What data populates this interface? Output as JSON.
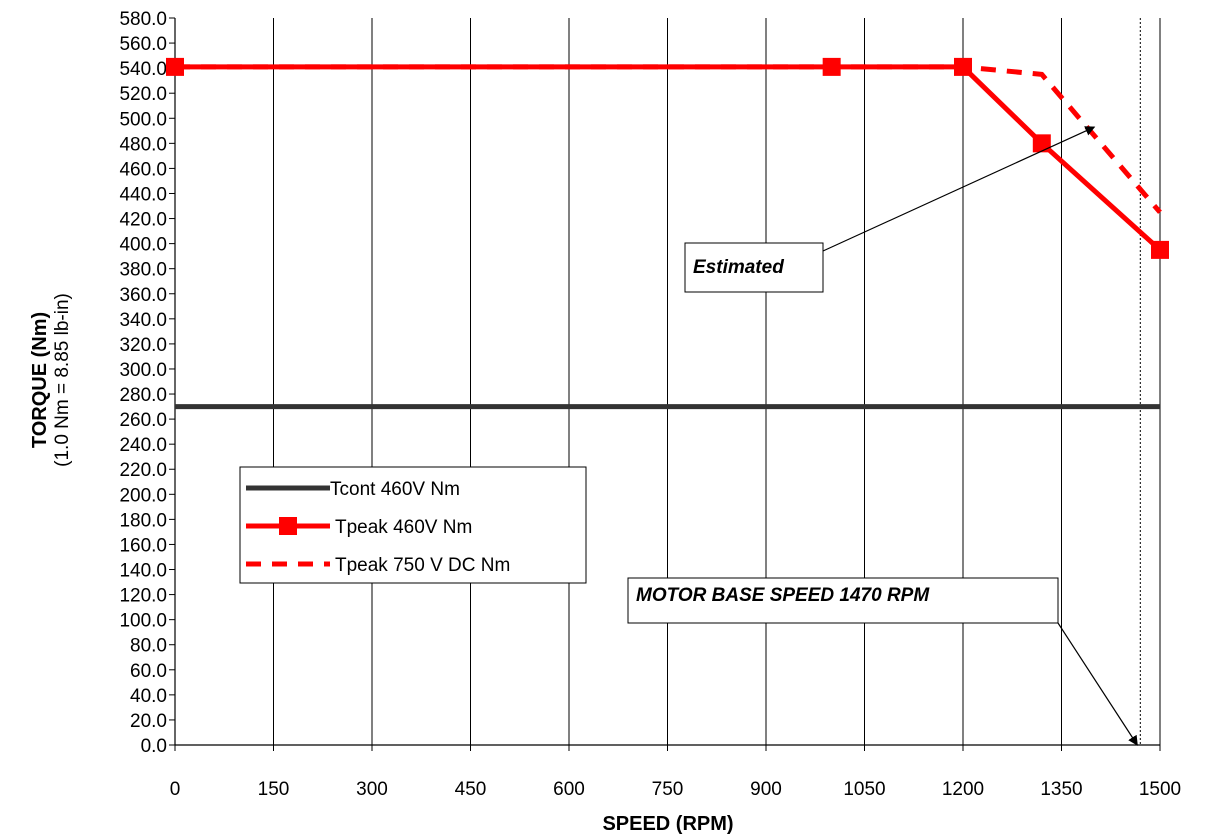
{
  "chart_data": {
    "type": "line",
    "xlabel": "SPEED (RPM)",
    "ylabel": "TORQUE (Nm)",
    "ylabel_sub": "(1.0 Nm = 8.85 lb-in)",
    "xlim": [
      0,
      1500
    ],
    "ylim": [
      0,
      580
    ],
    "x_ticks": [
      "0",
      "150",
      "300",
      "450",
      "600",
      "750",
      "900",
      "1050",
      "1200",
      "1350",
      "1500"
    ],
    "x_tick_values": [
      0,
      150,
      300,
      450,
      600,
      750,
      900,
      1050,
      1200,
      1350,
      1500
    ],
    "y_ticks": [
      "0.0",
      "20.0",
      "40.0",
      "60.0",
      "80.0",
      "100.0",
      "120.0",
      "140.0",
      "160.0",
      "180.0",
      "200.0",
      "220.0",
      "240.0",
      "260.0",
      "280.0",
      "300.0",
      "320.0",
      "340.0",
      "360.0",
      "380.0",
      "400.0",
      "420.0",
      "440.0",
      "460.0",
      "480.0",
      "500.0",
      "520.0",
      "540.0",
      "560.0",
      "580.0"
    ],
    "y_tick_values": [
      0,
      20,
      40,
      60,
      80,
      100,
      120,
      140,
      160,
      180,
      200,
      220,
      240,
      260,
      280,
      300,
      320,
      340,
      360,
      380,
      400,
      420,
      440,
      460,
      480,
      500,
      520,
      540,
      560,
      580
    ],
    "grid": "vertical",
    "legend_position": "bottom-left",
    "series": [
      {
        "name": "Tcont 460V Nm",
        "color": "#333333",
        "style": "solid",
        "marker": "none",
        "points": [
          [
            0,
            270
          ],
          [
            1500,
            270
          ]
        ]
      },
      {
        "name": "Tpeak 460V Nm",
        "color": "#ff0000",
        "style": "solid",
        "marker": "square",
        "points": [
          [
            0,
            541
          ],
          [
            1000,
            541
          ],
          [
            1200,
            541
          ],
          [
            1320,
            480
          ],
          [
            1500,
            395
          ]
        ]
      },
      {
        "name": "Tpeak 750 V DC Nm",
        "color": "#ff0000",
        "style": "dashed",
        "marker": "none",
        "points": [
          [
            0,
            541
          ],
          [
            1000,
            541
          ],
          [
            1200,
            541
          ],
          [
            1320,
            535
          ],
          [
            1500,
            425
          ]
        ]
      }
    ],
    "reference_line": {
      "x": 1470,
      "style": "dotted",
      "color": "#000000"
    },
    "annotations": [
      {
        "text": "Estimated",
        "target": [
          1400,
          493
        ]
      },
      {
        "text": "MOTOR BASE SPEED  1470 RPM",
        "target": [
          1470,
          0
        ]
      }
    ]
  }
}
